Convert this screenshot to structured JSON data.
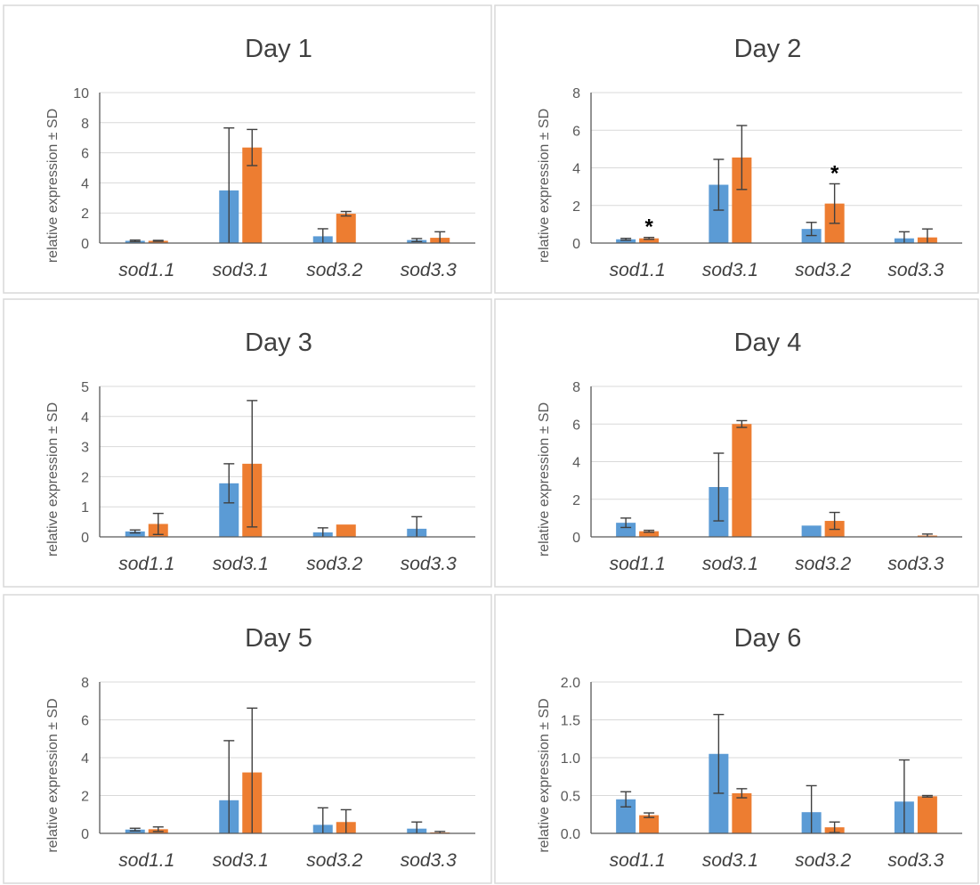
{
  "chart_data": [
    {
      "type": "bar",
      "title": "Day 1",
      "ylabel": "relative expression ± SD",
      "categories": [
        "sod1.1",
        "sod3.1",
        "sod3.2",
        "sod3.3"
      ],
      "yticks": [
        "0",
        "2",
        "4",
        "6",
        "8",
        "10"
      ],
      "ylim": [
        0,
        10
      ],
      "series": [
        {
          "values": [
            0.15,
            3.5,
            0.45,
            0.2
          ],
          "errors": [
            0.05,
            4.15,
            0.5,
            0.1
          ],
          "color": "#5b9bd5"
        },
        {
          "values": [
            0.15,
            6.35,
            1.95,
            0.35
          ],
          "errors": [
            0.03,
            1.2,
            0.15,
            0.4
          ],
          "color": "#ed7d31"
        }
      ],
      "annotations": []
    },
    {
      "type": "bar",
      "title": "Day 2",
      "ylabel": "relative expression ± SD",
      "categories": [
        "sod1.1",
        "sod3.1",
        "sod3.2",
        "sod3.3"
      ],
      "yticks": [
        "0",
        "2",
        "4",
        "6",
        "8"
      ],
      "ylim": [
        0,
        8
      ],
      "series": [
        {
          "values": [
            0.2,
            3.1,
            0.75,
            0.25
          ],
          "errors": [
            0.05,
            1.35,
            0.35,
            0.35
          ],
          "color": "#5b9bd5"
        },
        {
          "values": [
            0.25,
            4.55,
            2.1,
            0.3
          ],
          "errors": [
            0.05,
            1.7,
            1.05,
            0.45
          ],
          "color": "#ed7d31"
        }
      ],
      "annotations": [
        {
          "category": 0,
          "series": 1,
          "label": "*"
        },
        {
          "category": 2,
          "series": 1,
          "label": "*"
        }
      ]
    },
    {
      "type": "bar",
      "title": "Day 3",
      "ylabel": "relative expression ± SD",
      "categories": [
        "sod1.1",
        "sod3.1",
        "sod3.2",
        "sod3.3"
      ],
      "yticks": [
        "0",
        "1",
        "2",
        "3",
        "4",
        "5"
      ],
      "ylim": [
        0,
        5
      ],
      "series": [
        {
          "values": [
            0.18,
            1.78,
            0.15,
            0.27
          ],
          "errors": [
            0.05,
            0.65,
            0.15,
            0.4
          ],
          "color": "#5b9bd5"
        },
        {
          "values": [
            0.43,
            2.43,
            0.41,
            0
          ],
          "errors": [
            0.35,
            2.1,
            0,
            0
          ],
          "color": "#ed7d31"
        }
      ],
      "annotations": []
    },
    {
      "type": "bar",
      "title": "Day 4",
      "ylabel": "relative expression ± SD",
      "categories": [
        "sod1.1",
        "sod3.1",
        "sod3.2",
        "sod3.3"
      ],
      "yticks": [
        "0",
        "2",
        "4",
        "6",
        "8"
      ],
      "ylim": [
        0,
        8
      ],
      "series": [
        {
          "values": [
            0.75,
            2.65,
            0.6,
            0
          ],
          "errors": [
            0.25,
            1.8,
            0,
            0
          ],
          "color": "#5b9bd5"
        },
        {
          "values": [
            0.3,
            6.0,
            0.85,
            0.07
          ],
          "errors": [
            0.05,
            0.18,
            0.45,
            0.08
          ],
          "color": "#ed7d31"
        }
      ],
      "annotations": []
    },
    {
      "type": "bar",
      "title": "Day 5",
      "ylabel": "relative expression ± SD",
      "categories": [
        "sod1.1",
        "sod3.1",
        "sod3.2",
        "sod3.3"
      ],
      "yticks": [
        "0",
        "2",
        "4",
        "6",
        "8"
      ],
      "ylim": [
        0,
        8
      ],
      "series": [
        {
          "values": [
            0.2,
            1.75,
            0.45,
            0.25
          ],
          "errors": [
            0.07,
            3.15,
            0.9,
            0.35
          ],
          "color": "#5b9bd5"
        },
        {
          "values": [
            0.22,
            3.22,
            0.6,
            0.05
          ],
          "errors": [
            0.12,
            3.4,
            0.65,
            0.05
          ],
          "color": "#ed7d31"
        }
      ],
      "annotations": []
    },
    {
      "type": "bar",
      "title": "Day 6",
      "ylabel": "relative expression ± SD",
      "categories": [
        "sod1.1",
        "sod3.1",
        "sod3.2",
        "sod3.3"
      ],
      "yticks": [
        "0.0",
        "0.5",
        "1.0",
        "1.5",
        "2.0"
      ],
      "ylim": [
        0,
        2
      ],
      "series": [
        {
          "values": [
            0.45,
            1.05,
            0.28,
            0.42
          ],
          "errors": [
            0.1,
            0.52,
            0.35,
            0.55
          ],
          "color": "#5b9bd5"
        },
        {
          "values": [
            0.24,
            0.53,
            0.08,
            0.49
          ],
          "errors": [
            0.03,
            0.06,
            0.07,
            0.01
          ],
          "color": "#ed7d31"
        }
      ],
      "annotations": []
    }
  ]
}
